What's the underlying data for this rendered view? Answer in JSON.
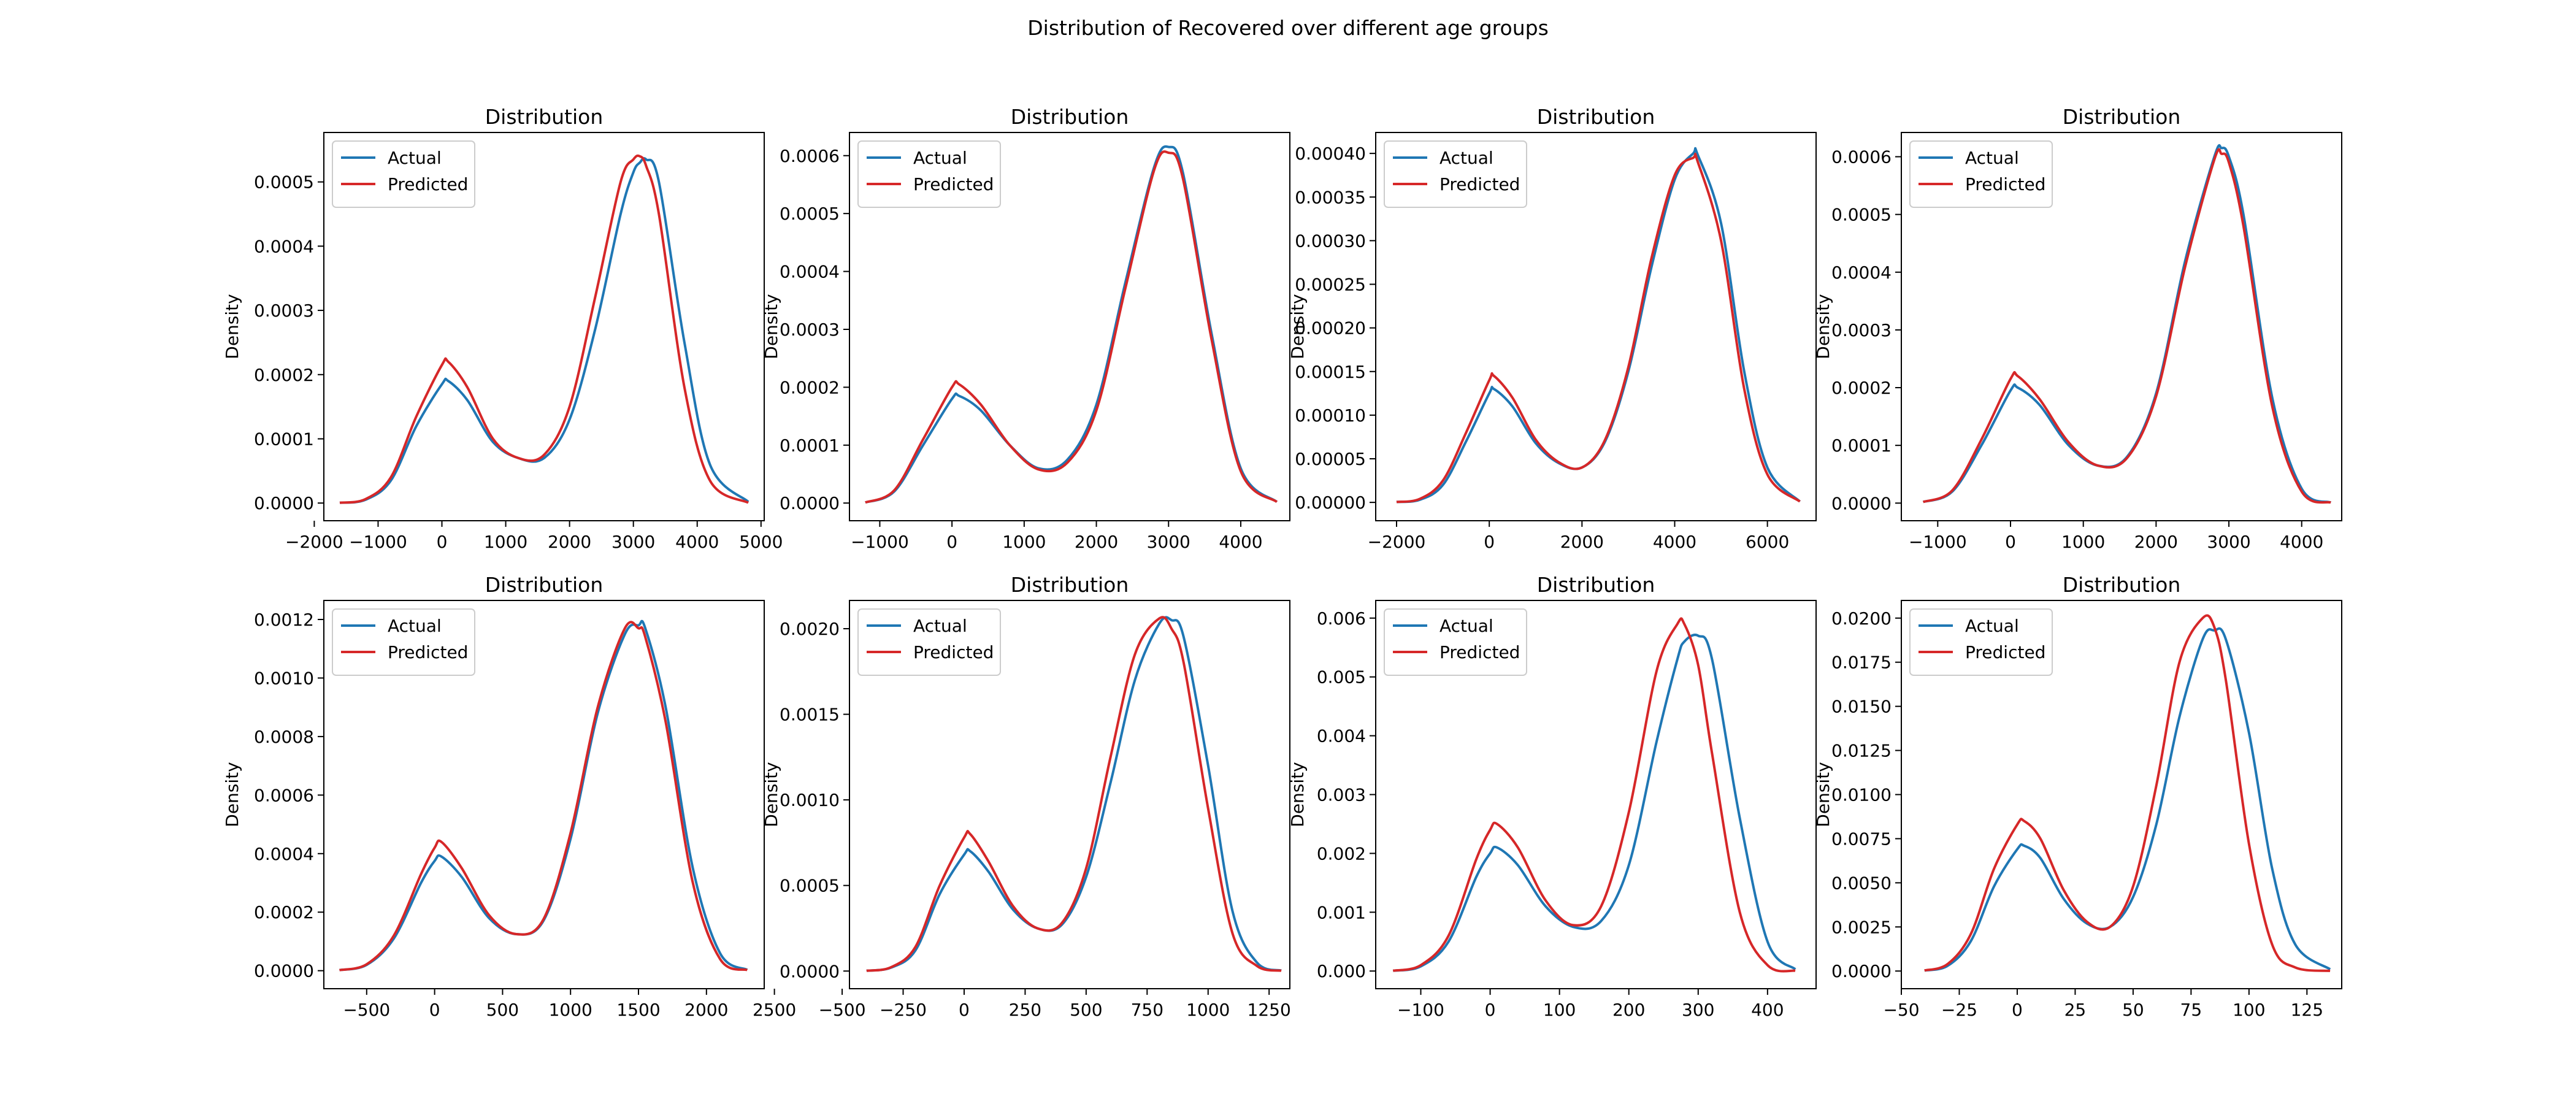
{
  "suptitle": "Distribution of Recovered over different age groups",
  "colors": {
    "actual": "#1f77b4",
    "predicted": "#d62728"
  },
  "chart_data": [
    {
      "type": "line",
      "title": "Distribution",
      "xlabel": "",
      "ylabel": "Density",
      "legend_position": "top-left",
      "xlim": [
        -1850,
        5050
      ],
      "ylim": [
        -2.75e-05,
        0.000577
      ],
      "xticks": [
        -2000,
        -1000,
        0,
        1000,
        2000,
        3000,
        4000,
        5000
      ],
      "xtick_labels": [
        "−2000",
        "−1000",
        "0",
        "1000",
        "2000",
        "3000",
        "4000",
        "5000"
      ],
      "yticks": [
        0,
        0.0001,
        0.0002,
        0.0003,
        0.0004,
        0.0005
      ],
      "ytick_labels": [
        "0.0000",
        "0.0001",
        "0.0002",
        "0.0003",
        "0.0004",
        "0.0005"
      ],
      "x": [
        -1600,
        -1200,
        -800,
        -400,
        0,
        100,
        400,
        800,
        1200,
        1600,
        2000,
        2400,
        2800,
        3000,
        3100,
        3200,
        3400,
        3800,
        4200,
        4800
      ],
      "series": [
        {
          "name": "Actual",
          "values": [
            5e-07,
            5e-06,
            3.5e-05,
            0.00012,
            0.000185,
            0.00019,
            0.00016,
            9.5e-05,
            7e-05,
            7e-05,
            0.00013,
            0.00027,
            0.00045,
            0.000515,
            0.00053,
            0.000535,
            0.0005,
            0.00025,
            6e-05,
            2e-06
          ]
        },
        {
          "name": "Predicted",
          "values": [
            5e-07,
            6e-06,
            4e-05,
            0.000135,
            0.000215,
            0.00022,
            0.00018,
            0.0001,
            7e-05,
            7.5e-05,
            0.00015,
            0.00032,
            0.0005,
            0.000535,
            0.00054,
            0.000525,
            0.00045,
            0.00018,
            3.5e-05,
            5e-07
          ]
        }
      ]
    },
    {
      "type": "line",
      "title": "Distribution",
      "xlabel": "",
      "ylabel": "Density",
      "legend_position": "top-left",
      "xlim": [
        -1420,
        4680
      ],
      "ylim": [
        -3.05e-05,
        0.00064
      ],
      "xticks": [
        -1000,
        0,
        1000,
        2000,
        3000,
        4000
      ],
      "xtick_labels": [
        "−1000",
        "0",
        "1000",
        "2000",
        "3000",
        "4000"
      ],
      "yticks": [
        0,
        0.0001,
        0.0002,
        0.0003,
        0.0004,
        0.0005,
        0.0006
      ],
      "ytick_labels": [
        "0.0000",
        "0.0001",
        "0.0002",
        "0.0003",
        "0.0004",
        "0.0005",
        "0.0006"
      ],
      "x": [
        -1200,
        -800,
        -400,
        0,
        100,
        400,
        800,
        1200,
        1600,
        2000,
        2400,
        2800,
        3000,
        3200,
        3600,
        4000,
        4500
      ],
      "series": [
        {
          "name": "Actual",
          "values": [
            1e-06,
            2e-05,
            0.0001,
            0.00018,
            0.000185,
            0.00016,
            0.0001,
            6e-05,
            7.5e-05,
            0.00017,
            0.00038,
            0.00058,
            0.000615,
            0.00057,
            0.00029,
            6e-05,
            2e-06
          ]
        },
        {
          "name": "Predicted",
          "values": [
            1e-06,
            2.2e-05,
            0.00011,
            0.0002,
            0.000205,
            0.00017,
            0.0001,
            5.8e-05,
            7e-05,
            0.00016,
            0.00037,
            0.000575,
            0.000605,
            0.00056,
            0.00028,
            5.5e-05,
            2e-06
          ]
        }
      ]
    },
    {
      "type": "line",
      "title": "Distribution",
      "xlabel": "",
      "ylabel": "Density",
      "legend_position": "top-left",
      "xlim": [
        -2450,
        7050
      ],
      "ylim": [
        -2.1e-05,
        0.000424
      ],
      "xticks": [
        -2000,
        0,
        2000,
        4000,
        6000
      ],
      "xtick_labels": [
        "−2000",
        "0",
        "2000",
        "4000",
        "6000"
      ],
      "yticks": [
        0,
        5e-05,
        0.0001,
        0.00015,
        0.0002,
        0.00025,
        0.0003,
        0.00035,
        0.0004
      ],
      "ytick_labels": [
        "0.00000",
        "0.00005",
        "0.00010",
        "0.00015",
        "0.00020",
        "0.00025",
        "0.00030",
        "0.00035",
        "0.00040"
      ],
      "x": [
        -2000,
        -1500,
        -1000,
        -500,
        0,
        100,
        500,
        1000,
        1500,
        2000,
        2500,
        3000,
        3500,
        4000,
        4400,
        4500,
        5000,
        5500,
        6000,
        6700
      ],
      "series": [
        {
          "name": "Actual",
          "values": [
            5e-07,
            3e-06,
            2e-05,
            7e-05,
            0.000125,
            0.00013,
            0.00011,
            6.8e-05,
            4.5e-05,
            4e-05,
            7e-05,
            0.00015,
            0.00027,
            0.00037,
            0.0004,
            0.000398,
            0.00032,
            0.00015,
            4e-05,
            1e-06
          ]
        },
        {
          "name": "Predicted",
          "values": [
            5e-07,
            4e-06,
            2.5e-05,
            8e-05,
            0.00014,
            0.000145,
            0.00012,
            7.2e-05,
            4.6e-05,
            4e-05,
            7.2e-05,
            0.000155,
            0.00028,
            0.000375,
            0.000395,
            0.00039,
            0.0003,
            0.00013,
            3.2e-05,
            1e-06
          ]
        }
      ]
    },
    {
      "type": "line",
      "title": "Distribution",
      "xlabel": "",
      "ylabel": "Density",
      "legend_position": "top-left",
      "xlim": [
        -1500,
        4550
      ],
      "ylim": [
        -3.05e-05,
        0.000642
      ],
      "xticks": [
        -1000,
        0,
        1000,
        2000,
        3000,
        4000
      ],
      "xtick_labels": [
        "−1000",
        "0",
        "1000",
        "2000",
        "3000",
        "4000"
      ],
      "yticks": [
        0,
        0.0001,
        0.0002,
        0.0003,
        0.0004,
        0.0005,
        0.0006
      ],
      "ytick_labels": [
        "0.0000",
        "0.0001",
        "0.0002",
        "0.0003",
        "0.0004",
        "0.0005",
        "0.0006"
      ],
      "x": [
        -1200,
        -800,
        -400,
        0,
        100,
        400,
        800,
        1200,
        1600,
        2000,
        2400,
        2800,
        2900,
        3000,
        3200,
        3600,
        4000,
        4400
      ],
      "series": [
        {
          "name": "Actual",
          "values": [
            2e-06,
            2e-05,
            0.0001,
            0.000195,
            0.0002,
            0.00017,
            0.0001,
            6.5e-05,
            8e-05,
            0.00019,
            0.00042,
            0.0006,
            0.000615,
            0.0006,
            0.0005,
            0.00018,
            2.5e-05,
            1e-06
          ]
        },
        {
          "name": "Predicted",
          "values": [
            2e-06,
            2.2e-05,
            0.00011,
            0.000215,
            0.00022,
            0.00018,
            0.000105,
            6.5e-05,
            7.8e-05,
            0.000185,
            0.00041,
            0.000595,
            0.000605,
            0.00059,
            0.00048,
            0.000165,
            2e-05,
            1e-06
          ]
        }
      ]
    },
    {
      "type": "line",
      "title": "Distribution",
      "xlabel": "",
      "ylabel": "Density",
      "legend_position": "top-left",
      "xlim": [
        -815,
        2425
      ],
      "ylim": [
        -6.15e-05,
        0.001265
      ],
      "xticks": [
        -500,
        0,
        500,
        1000,
        1500,
        2000,
        2500
      ],
      "xtick_labels": [
        "−500",
        "0",
        "500",
        "1000",
        "1500",
        "2000",
        "2500"
      ],
      "yticks": [
        0,
        0.0002,
        0.0004,
        0.0006,
        0.0008,
        0.001,
        0.0012
      ],
      "ytick_labels": [
        "0.0000",
        "0.0002",
        "0.0004",
        "0.0006",
        "0.0008",
        "0.0010",
        "0.0012"
      ],
      "x": [
        -700,
        -500,
        -300,
        -100,
        0,
        50,
        200,
        400,
        600,
        800,
        1000,
        1200,
        1400,
        1500,
        1550,
        1700,
        1900,
        2100,
        2300
      ],
      "series": [
        {
          "name": "Actual",
          "values": [
            2e-06,
            2e-05,
            0.00011,
            0.0003,
            0.000375,
            0.00039,
            0.00032,
            0.00018,
            0.000125,
            0.00017,
            0.00045,
            0.00088,
            0.00115,
            0.00118,
            0.00117,
            0.0009,
            0.00035,
            6e-05,
            3e-06
          ]
        },
        {
          "name": "Predicted",
          "values": [
            2e-06,
            2.2e-05,
            0.00012,
            0.00033,
            0.00042,
            0.00044,
            0.00035,
            0.00019,
            0.000125,
            0.000175,
            0.00047,
            0.0009,
            0.00117,
            0.00117,
            0.00114,
            0.00085,
            0.0003,
            4e-05,
            2e-06
          ]
        }
      ]
    },
    {
      "type": "line",
      "title": "Distribution",
      "xlabel": "",
      "ylabel": "Density",
      "legend_position": "top-left",
      "xlim": [
        -470,
        1335
      ],
      "ylim": [
        -0.000103,
        0.002165
      ],
      "xticks": [
        -500,
        -250,
        0,
        250,
        500,
        750,
        1000,
        1250
      ],
      "xtick_labels": [
        "−500",
        "−250",
        "0",
        "250",
        "500",
        "750",
        "1000",
        "1250"
      ],
      "yticks": [
        0,
        0.0005,
        0.001,
        0.0015,
        0.002
      ],
      "ytick_labels": [
        "0.0000",
        "0.0005",
        "0.0010",
        "0.0015",
        "0.0020"
      ],
      "x": [
        -400,
        -300,
        -200,
        -100,
        0,
        25,
        100,
        200,
        300,
        400,
        500,
        600,
        700,
        800,
        850,
        900,
        1000,
        1100,
        1200,
        1300
      ],
      "series": [
        {
          "name": "Actual",
          "values": [
            2e-06,
            2e-05,
            0.00012,
            0.00045,
            0.00068,
            0.0007,
            0.00058,
            0.00036,
            0.00025,
            0.00027,
            0.00055,
            0.0011,
            0.0017,
            0.00203,
            0.00205,
            0.00195,
            0.0012,
            0.00035,
            5e-05,
            3e-06
          ]
        },
        {
          "name": "Predicted",
          "values": [
            2e-06,
            2.2e-05,
            0.00014,
            0.0005,
            0.00078,
            0.0008,
            0.00064,
            0.00038,
            0.00025,
            0.00028,
            0.0006,
            0.00125,
            0.00185,
            0.00206,
            0.002,
            0.0018,
            0.00095,
            0.00022,
            3e-05,
            2e-06
          ]
        }
      ]
    },
    {
      "type": "line",
      "title": "Distribution",
      "xlabel": "",
      "ylabel": "Density",
      "legend_position": "top-left",
      "xlim": [
        -165,
        470
      ],
      "ylim": [
        -0.0003,
        0.0063
      ],
      "xticks": [
        -100,
        0,
        100,
        200,
        300,
        400
      ],
      "xtick_labels": [
        "−100",
        "0",
        "100",
        "200",
        "300",
        "400"
      ],
      "yticks": [
        0,
        0.001,
        0.002,
        0.003,
        0.004,
        0.005,
        0.006
      ],
      "ytick_labels": [
        "0.000",
        "0.001",
        "0.002",
        "0.003",
        "0.004",
        "0.005",
        "0.006"
      ],
      "x": [
        -140,
        -100,
        -60,
        -20,
        0,
        10,
        40,
        80,
        120,
        160,
        200,
        240,
        270,
        280,
        300,
        320,
        360,
        400,
        440
      ],
      "series": [
        {
          "name": "Actual",
          "values": [
            5e-06,
            8e-05,
            0.0005,
            0.0016,
            0.002,
            0.0021,
            0.0018,
            0.0011,
            0.00075,
            0.00085,
            0.0018,
            0.0039,
            0.0053,
            0.0056,
            0.0057,
            0.0053,
            0.0026,
            0.0005,
            3e-05
          ]
        },
        {
          "name": "Predicted",
          "values": [
            5e-06,
            0.0001,
            0.0006,
            0.0019,
            0.0024,
            0.0025,
            0.0021,
            0.0012,
            0.00078,
            0.0011,
            0.0027,
            0.0051,
            0.0059,
            0.0059,
            0.0052,
            0.0037,
            0.001,
            0.0001,
            5e-06
          ]
        }
      ]
    },
    {
      "type": "line",
      "title": "Distribution",
      "xlabel": "",
      "ylabel": "Density",
      "legend_position": "top-left",
      "xlim": [
        -50,
        140
      ],
      "ylim": [
        -0.001,
        0.021
      ],
      "xticks": [
        -50,
        -25,
        0,
        25,
        50,
        75,
        100,
        125
      ],
      "xtick_labels": [
        "−50",
        "−25",
        "0",
        "25",
        "50",
        "75",
        "100",
        "125"
      ],
      "yticks": [
        0,
        0.0025,
        0.005,
        0.0075,
        0.01,
        0.0125,
        0.015,
        0.0175,
        0.02
      ],
      "ytick_labels": [
        "0.0000",
        "0.0025",
        "0.0050",
        "0.0075",
        "0.0100",
        "0.0125",
        "0.0150",
        "0.0175",
        "0.0200"
      ],
      "x": [
        -40,
        -30,
        -20,
        -10,
        0,
        3,
        10,
        20,
        30,
        40,
        50,
        60,
        70,
        80,
        85,
        90,
        100,
        110,
        120,
        135
      ],
      "series": [
        {
          "name": "Actual",
          "values": [
            3e-05,
            0.0003,
            0.0017,
            0.0048,
            0.0069,
            0.0071,
            0.0064,
            0.0041,
            0.0027,
            0.0025,
            0.0042,
            0.0083,
            0.0144,
            0.0188,
            0.0193,
            0.0188,
            0.0135,
            0.0058,
            0.0015,
            0.0001
          ]
        },
        {
          "name": "Predicted",
          "values": [
            3e-05,
            0.0004,
            0.0021,
            0.0058,
            0.0083,
            0.0085,
            0.0075,
            0.0046,
            0.0028,
            0.0025,
            0.0048,
            0.0105,
            0.0175,
            0.02,
            0.0195,
            0.0165,
            0.0072,
            0.0015,
            0.0002,
            1e-05
          ]
        }
      ]
    }
  ]
}
